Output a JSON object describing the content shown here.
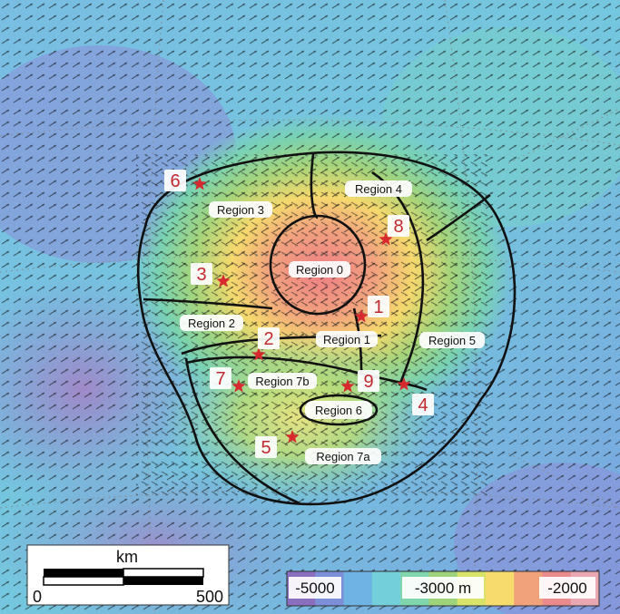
{
  "map": {
    "regions": [
      {
        "id": "region-0",
        "label": "Region 0"
      },
      {
        "id": "region-1",
        "label": "Region 1"
      },
      {
        "id": "region-2",
        "label": "Region 2"
      },
      {
        "id": "region-3",
        "label": "Region 3"
      },
      {
        "id": "region-4",
        "label": "Region 4"
      },
      {
        "id": "region-5",
        "label": "Region 5"
      },
      {
        "id": "region-6",
        "label": "Region 6"
      },
      {
        "id": "region-7a",
        "label": "Region 7a"
      },
      {
        "id": "region-7b",
        "label": "Region 7b"
      }
    ],
    "sites": [
      "1",
      "2",
      "3",
      "4",
      "5",
      "6",
      "7",
      "8",
      "9"
    ],
    "marker_color": "#d62a2f",
    "scale_bar": {
      "unit": "km",
      "min_label": "0",
      "max_label": "500"
    },
    "color_bar": {
      "labels": [
        "-5000",
        "-3000 m",
        "-2000"
      ],
      "colors": [
        "#8a6fc0",
        "#7d8fd8",
        "#6fb2e4",
        "#73cfd9",
        "#7fd6ad",
        "#9ed37b",
        "#d8e36a",
        "#f6dc6d",
        "#f2a27a",
        "#e98a8c",
        "#e8a7b3"
      ]
    }
  }
}
